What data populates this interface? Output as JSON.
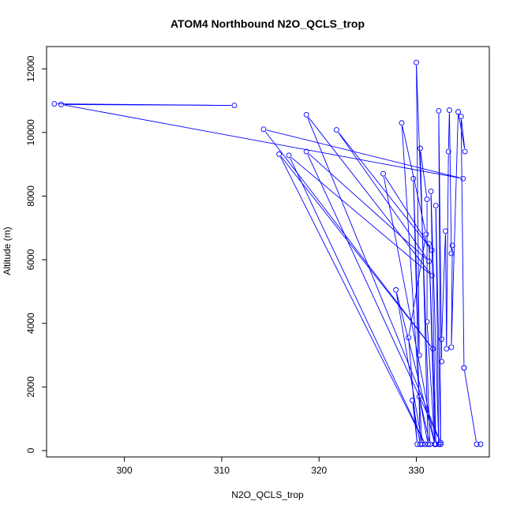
{
  "chart_data": {
    "type": "line",
    "title": "ATOM4 Northbound N2O_QCLS_trop",
    "xlabel": "N2O_QCLS_trop",
    "ylabel": "Altitude (m)",
    "xlim": [
      292,
      337.5
    ],
    "ylim": [
      -200,
      12700
    ],
    "xticks": [
      300,
      310,
      320,
      330
    ],
    "yticks": [
      0,
      2000,
      4000,
      6000,
      8000,
      10000,
      12000
    ],
    "line_color": "#0000ff",
    "marker": "open-circle",
    "grid": false,
    "legend": "none",
    "series": [
      {
        "values": [
          [
            292.8,
            10900
          ],
          [
            311.3,
            10850
          ],
          [
            293.5,
            10880
          ],
          [
            334.8,
            8550
          ],
          [
            314.3,
            10100
          ],
          [
            331.7,
            3200
          ],
          [
            315.9,
            9320
          ],
          [
            330.9,
            200
          ],
          [
            316.9,
            9280
          ],
          [
            331.6,
            5500
          ],
          [
            318.7,
            10560
          ],
          [
            332.5,
            250
          ],
          [
            318.7,
            9400
          ],
          [
            331.3,
            5950
          ],
          [
            321.8,
            10080
          ],
          [
            331.6,
            6300
          ],
          [
            326.6,
            8700
          ],
          [
            331.9,
            200
          ],
          [
            327.9,
            5050
          ],
          [
            330.6,
            200
          ],
          [
            328.5,
            10300
          ],
          [
            331.0,
            6800
          ],
          [
            329.2,
            3550
          ],
          [
            330.1,
            200
          ],
          [
            329.6,
            1580
          ],
          [
            330.4,
            200
          ],
          [
            329.7,
            8550
          ],
          [
            330.3,
            3000
          ],
          [
            330.0,
            12200
          ],
          [
            331.4,
            200
          ],
          [
            330.3,
            1700
          ],
          [
            331.2,
            200
          ],
          [
            330.4,
            9500
          ],
          [
            331.1,
            7900
          ],
          [
            331.1,
            4050
          ],
          [
            331.9,
            200
          ],
          [
            331.3,
            6500
          ],
          [
            332.0,
            200
          ],
          [
            331.5,
            8150
          ],
          [
            332.3,
            200
          ],
          [
            332.0,
            7700
          ],
          [
            332.5,
            200
          ],
          [
            332.3,
            10680
          ],
          [
            332.6,
            2800
          ],
          [
            332.6,
            3500
          ],
          [
            333.0,
            6900
          ],
          [
            333.1,
            3200
          ],
          [
            333.3,
            9400
          ],
          [
            333.4,
            10700
          ],
          [
            333.6,
            6200
          ],
          [
            333.7,
            6450
          ],
          [
            333.6,
            3250
          ],
          [
            334.3,
            10650
          ],
          [
            335.0,
            9400
          ],
          [
            334.6,
            10500
          ],
          [
            334.9,
            2600
          ],
          [
            334.9,
            2600
          ],
          [
            336.2,
            200
          ],
          [
            336.6,
            200
          ]
        ]
      }
    ]
  }
}
